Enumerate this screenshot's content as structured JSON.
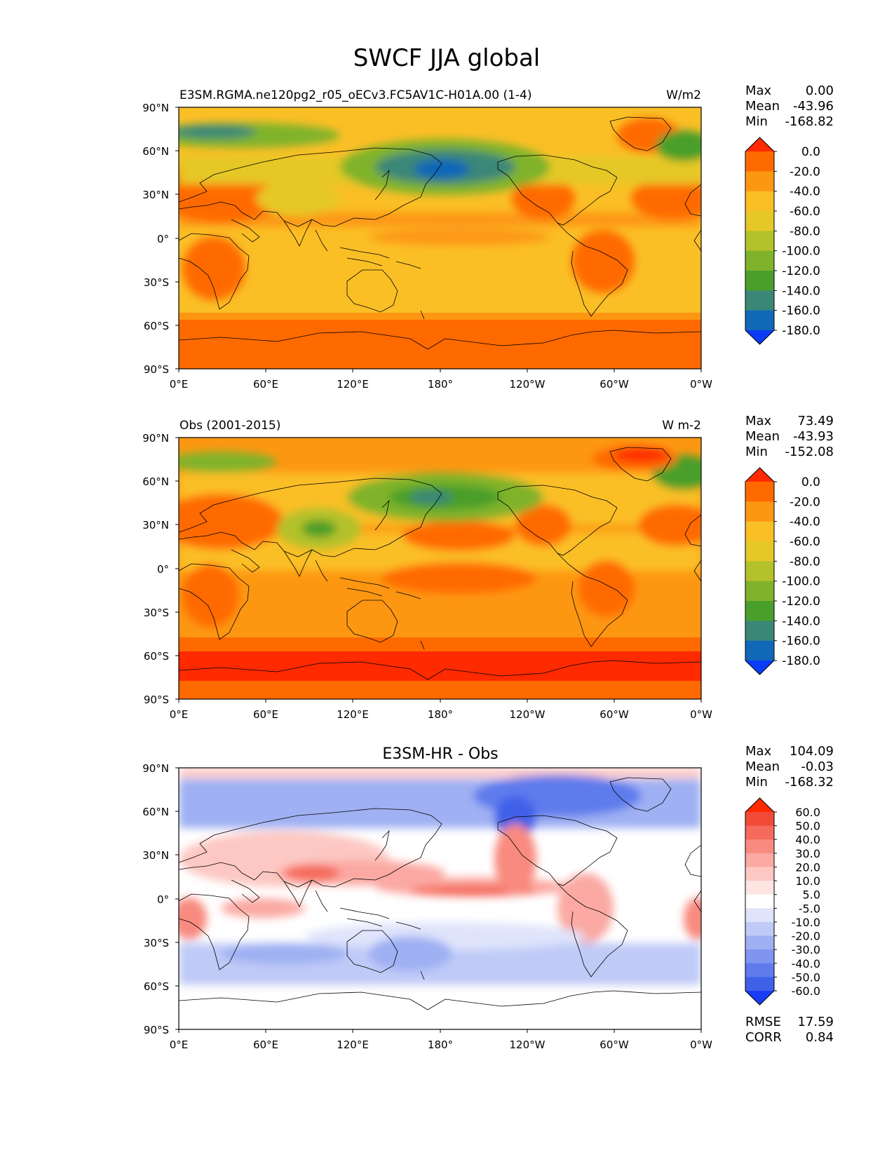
{
  "figure": {
    "title": "SWCF JJA global"
  },
  "axes": {
    "lat_ticks": [
      "90°N",
      "60°N",
      "30°N",
      "0°",
      "30°S",
      "60°S",
      "90°S"
    ],
    "lon_ticks": [
      "0°E",
      "60°E",
      "120°E",
      "180°",
      "120°W",
      "60°W",
      "0°W"
    ]
  },
  "panels": [
    {
      "id": "model",
      "title_left": "E3SM.RGMA.ne120pg2_r05_oECv3.FC5AV1C-H01A.00 (1-4)",
      "title_center": "",
      "units": "W/m2",
      "stats": [
        {
          "label": "Max",
          "value": "0.00"
        },
        {
          "label": "Mean",
          "value": "-43.96"
        },
        {
          "label": "Min",
          "value": "-168.82"
        }
      ],
      "colorbar": {
        "levels": [
          "0.0",
          "-20.0",
          "-40.0",
          "-60.0",
          "-80.0",
          "-100.0",
          "-120.0",
          "-140.0",
          "-160.0",
          "-180.0"
        ],
        "colors": [
          "#ff2a00",
          "#ff6a00",
          "#fd9712",
          "#fbbf26",
          "#e5c827",
          "#b4c12a",
          "#80b32b",
          "#4a9f2c",
          "#3a8778",
          "#1167b8",
          "#0a3cf5"
        ]
      }
    },
    {
      "id": "obs",
      "title_left": "Obs (2001-2015)",
      "title_center": "",
      "units": "W m-2",
      "stats": [
        {
          "label": "Max",
          "value": "73.49"
        },
        {
          "label": "Mean",
          "value": "-43.93"
        },
        {
          "label": "Min",
          "value": "-152.08"
        }
      ],
      "colorbar": {
        "levels": [
          "0.0",
          "-20.0",
          "-40.0",
          "-60.0",
          "-80.0",
          "-100.0",
          "-120.0",
          "-140.0",
          "-160.0",
          "-180.0"
        ],
        "colors": [
          "#ff2a00",
          "#ff6a00",
          "#fd9712",
          "#fbbf26",
          "#e5c827",
          "#b4c12a",
          "#80b32b",
          "#4a9f2c",
          "#3a8778",
          "#1167b8",
          "#0a3cf5"
        ]
      }
    },
    {
      "id": "diff",
      "title_left": "",
      "title_center": "E3SM-HR - Obs",
      "units": "",
      "stats": [
        {
          "label": "Max",
          "value": "104.09"
        },
        {
          "label": "Mean",
          "value": "-0.03"
        },
        {
          "label": "Min",
          "value": "-168.32"
        }
      ],
      "colorbar": {
        "levels": [
          "60.0",
          "50.0",
          "40.0",
          "30.0",
          "20.0",
          "10.0",
          "5.0",
          "-5.0",
          "-10.0",
          "-20.0",
          "-30.0",
          "-40.0",
          "-50.0",
          "-60.0"
        ],
        "colors": [
          "#ff2a00",
          "#f14b38",
          "#f56a5c",
          "#f88a7f",
          "#fba9a2",
          "#fdc8c3",
          "#fee5e2",
          "#ffffff",
          "#dfe4fb",
          "#bfcaf7",
          "#9fb0f3",
          "#7f95ef",
          "#5f7bec",
          "#3f60e8",
          "#1a3cf5"
        ]
      },
      "footer_stats": [
        {
          "label": "RMSE",
          "value": "17.59"
        },
        {
          "label": "CORR",
          "value": "0.84"
        }
      ]
    }
  ]
}
